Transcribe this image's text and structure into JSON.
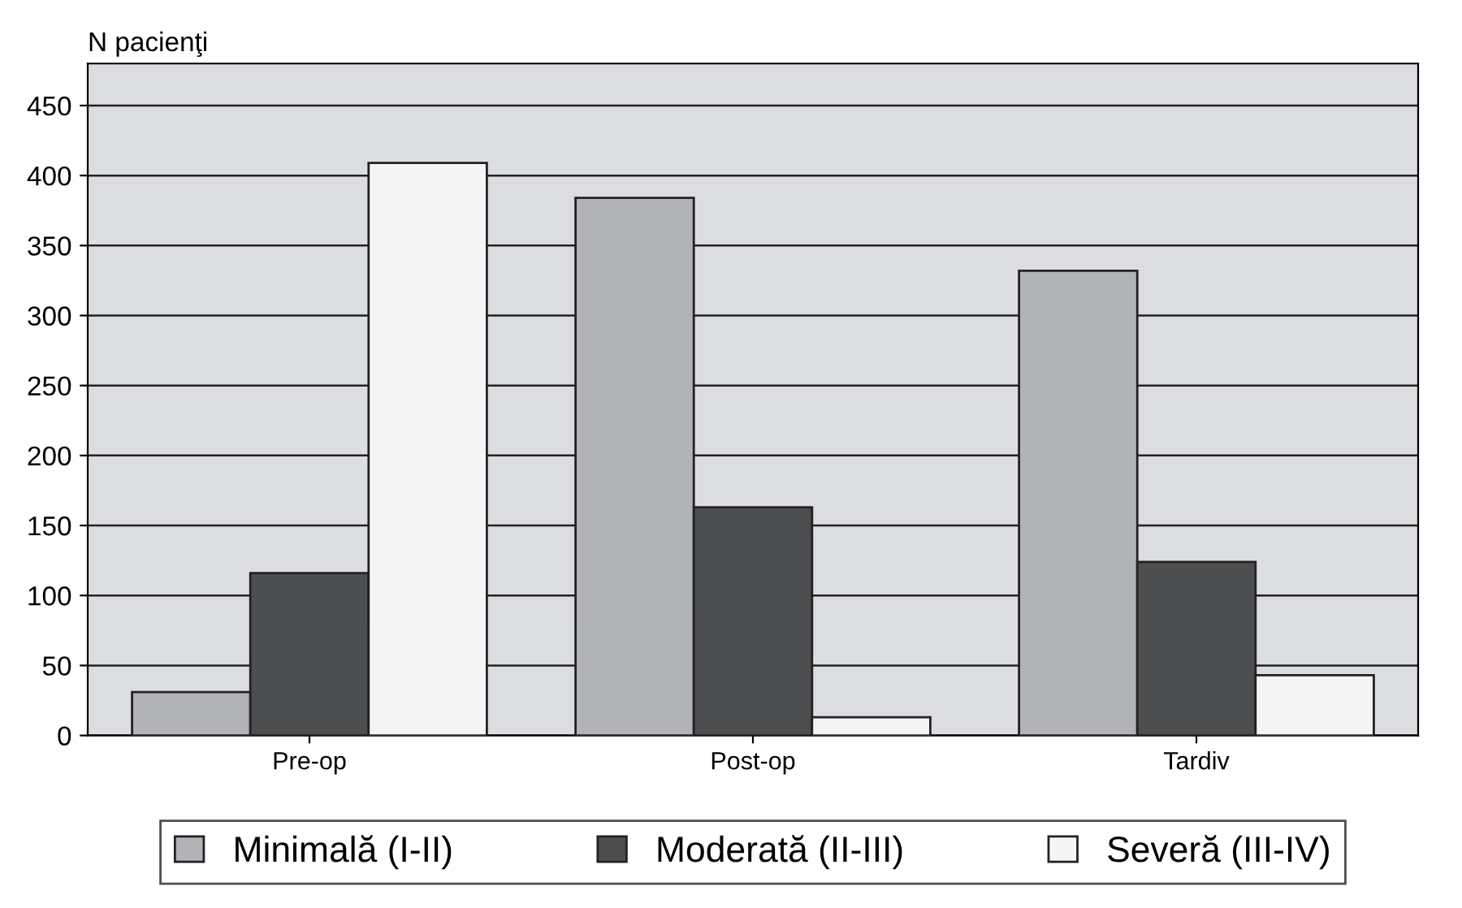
{
  "chart_data": {
    "type": "bar",
    "ylabel": "N pacienţi",
    "categories": [
      "Pre-op",
      "Post-op",
      "Tardiv"
    ],
    "series": [
      {
        "name": "Minimală (I-II)",
        "color": "#b2b3b6",
        "values": [
          31,
          384,
          332
        ]
      },
      {
        "name": "Moderată (II-III)",
        "color": "#4d4e50",
        "values": [
          116,
          163,
          124
        ]
      },
      {
        "name": "Severă (III-IV)",
        "color": "#f5f5f5",
        "values": [
          409,
          13,
          43
        ]
      }
    ],
    "ylim": [
      0,
      480
    ],
    "yticks": [
      0,
      50,
      100,
      150,
      200,
      250,
      300,
      350,
      400,
      450
    ],
    "grid": "y",
    "legend": "bottom"
  }
}
